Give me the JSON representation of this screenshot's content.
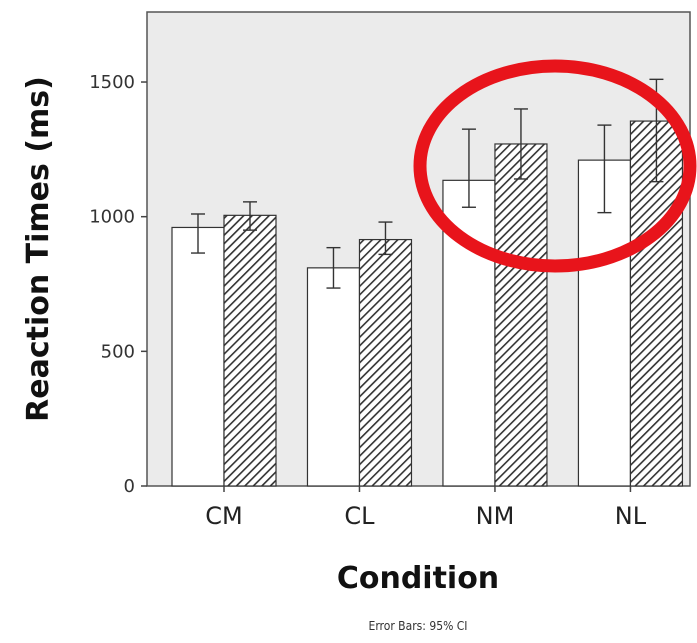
{
  "chart_data": {
    "type": "bar",
    "xlabel": "Condition",
    "ylabel": "Reaction Times (ms)",
    "categories": [
      "CM",
      "CL",
      "NM",
      "NL"
    ],
    "yticks": [
      0,
      500,
      1000,
      1500
    ],
    "ylim": [
      0,
      1760
    ],
    "grid": false,
    "series": [
      {
        "fill": "plain",
        "values": [
          960,
          810,
          1135,
          1210
        ],
        "ci_low": [
          865,
          735,
          1035,
          1015
        ],
        "ci_high": [
          1010,
          885,
          1325,
          1340
        ]
      },
      {
        "fill": "hatched",
        "values": [
          1005,
          915,
          1270,
          1355
        ],
        "ci_low": [
          950,
          860,
          1140,
          1130
        ],
        "ci_high": [
          1055,
          980,
          1400,
          1510
        ]
      }
    ],
    "footnote": "Error Bars: 95% CI",
    "annotation": {
      "shape": "ellipse",
      "color": "#e8141b",
      "highlights": [
        "NM",
        "NL"
      ]
    },
    "colors": {
      "plot_background": "#ebebeb",
      "bar_fill": "#ffffff",
      "hatch": "#333333",
      "axis": "#444444"
    }
  }
}
